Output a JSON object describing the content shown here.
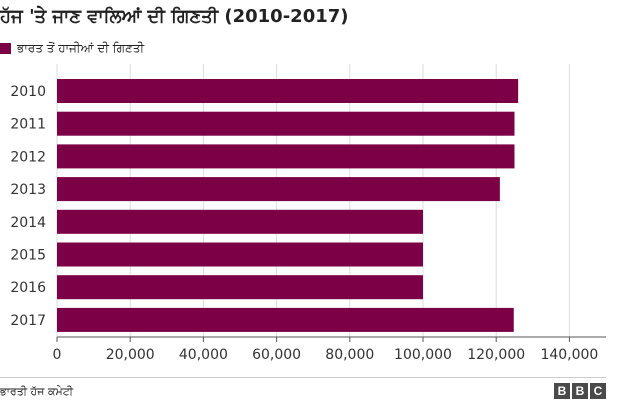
{
  "chart_data": {
    "type": "bar",
    "orientation": "horizontal",
    "title": "ਹੱਜ 'ਤੇ ਜਾਣ ਵਾਲਿਆਂ ਦੀ ਗਿਣਤੀ (2010-2017)",
    "legend": [
      "ਭਾਰਤ ਤੋਂ ਹਾਜੀਆਂ ਦੀ ਗਿਣਤੀ"
    ],
    "categories": [
      "2010",
      "2011",
      "2012",
      "2013",
      "2014",
      "2015",
      "2016",
      "2017"
    ],
    "series": [
      {
        "name": "ਭਾਰਤ ਤੋਂ ਹਾਜੀਆਂ ਦੀ ਗਿਣਤੀ",
        "values": [
          126000,
          125000,
          125000,
          121000,
          100000,
          100000,
          100000,
          124800
        ]
      }
    ],
    "xlim": [
      0,
      150000
    ],
    "xticks": [
      0,
      20000,
      40000,
      60000,
      80000,
      100000,
      120000,
      140000
    ],
    "xtick_labels": [
      "0",
      "20,000",
      "40,000",
      "60,000",
      "80,000",
      "100,000",
      "120,000",
      "140,000"
    ],
    "xlabel": "",
    "ylabel": "",
    "grid": true,
    "bar_color": "#7b0046",
    "legend_position": "top-left"
  },
  "source": "ਭਾਰਤੀ ਹੱਜ ਕਮੇਟੀ",
  "logo": {
    "letters": [
      "B",
      "B",
      "C"
    ]
  }
}
